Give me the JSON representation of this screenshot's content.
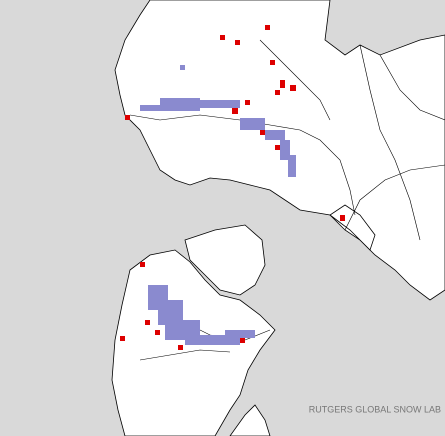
{
  "credit": "RUTGERS GLOBAL SNOW LAB"
}
